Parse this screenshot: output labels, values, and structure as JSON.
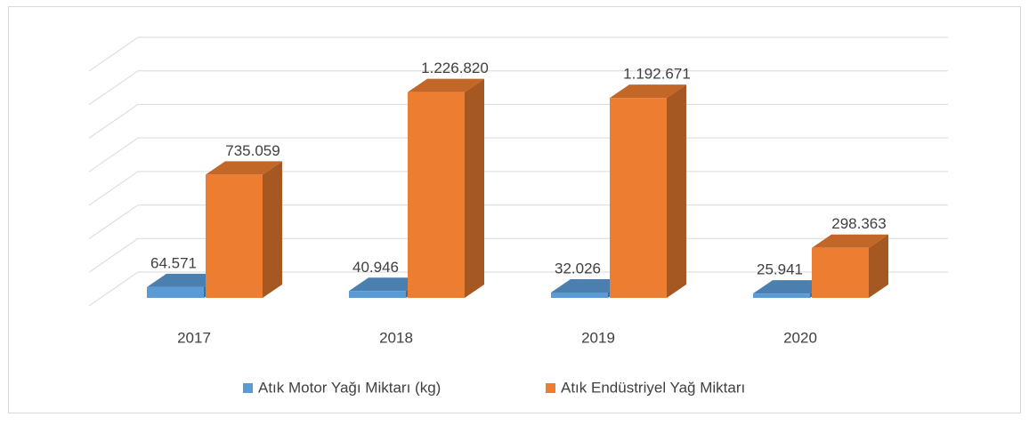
{
  "chart_data": {
    "type": "bar3d",
    "categories": [
      "2017",
      "2018",
      "2019",
      "2020"
    ],
    "series": [
      {
        "name": "Atık Motor Yağı Miktarı (kg)",
        "color": "#5b9bd5",
        "values": [
          64571,
          40946,
          32026,
          25941
        ],
        "value_labels": [
          "64.571",
          "40.946",
          "32.026",
          "25.941"
        ]
      },
      {
        "name": "Atık Endüstriyel Yağ Miktarı",
        "color": "#ed7d31",
        "values": [
          735059,
          1226820,
          1192671,
          298363
        ],
        "value_labels": [
          "735.059",
          "1.226.820",
          "1.192.671",
          "298.363"
        ]
      }
    ],
    "ylim": [
      0,
      1400000
    ],
    "yticks": [
      0,
      200000,
      400000,
      600000,
      800000,
      1000000,
      1200000,
      1400000
    ],
    "grid": true,
    "legend": "bottom"
  }
}
